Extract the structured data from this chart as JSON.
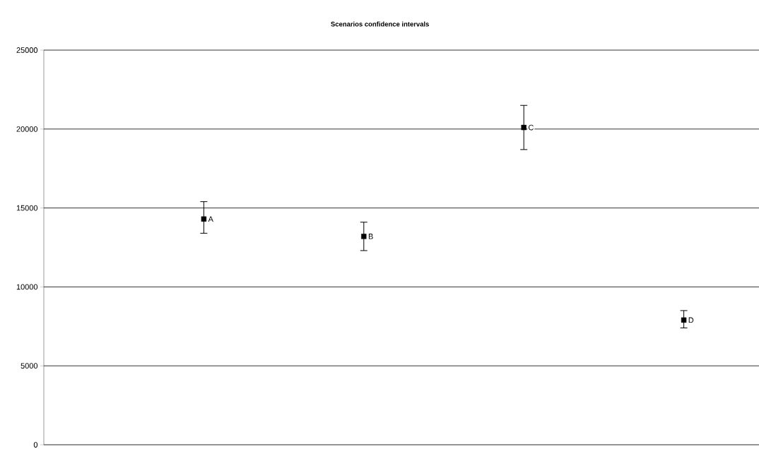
{
  "chart_data": {
    "type": "scatter",
    "title": "Scenarios confidence intervals",
    "categories": [
      null,
      null,
      null,
      null
    ],
    "series": [
      {
        "name": "A",
        "color": "#000000",
        "values": [
          14300,
          null,
          null,
          null
        ],
        "errors": [
          [
            13400,
            15400
          ],
          null,
          null,
          null
        ]
      },
      {
        "name": "B",
        "color": "#000000",
        "values": [
          null,
          13200,
          null,
          null
        ],
        "errors": [
          null,
          [
            12300,
            14100
          ],
          null,
          null
        ]
      },
      {
        "name": "C",
        "color": "#000000",
        "values": [
          null,
          null,
          20100,
          null
        ],
        "errors": [
          null,
          null,
          [
            18700,
            21500
          ],
          null
        ]
      },
      {
        "name": "D",
        "color": "#000000",
        "values": [
          null,
          null,
          null,
          7900
        ],
        "errors": [
          null,
          null,
          null,
          [
            7400,
            8500
          ]
        ]
      }
    ],
    "ylim": [
      0,
      25000
    ],
    "yticks": [
      0,
      5000,
      10000,
      15000,
      20000,
      25000
    ],
    "grid": "y",
    "marker": "square",
    "tick_labels": "y"
  }
}
